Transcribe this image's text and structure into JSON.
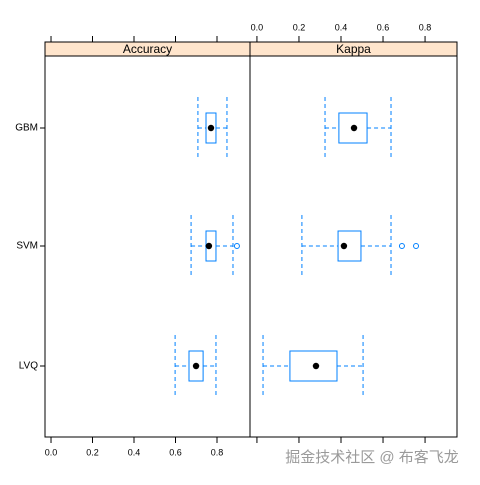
{
  "chart_data": [
    {
      "type": "box",
      "title": "Accuracy",
      "color": "#0080ff",
      "categories": [
        "GBM",
        "SVM",
        "LVQ"
      ],
      "boxes": [
        {
          "min": 0.708,
          "q1": 0.747,
          "median": 0.771,
          "q3": 0.795,
          "max": 0.848,
          "outliers": []
        },
        {
          "min": 0.675,
          "q1": 0.747,
          "median": 0.761,
          "q3": 0.795,
          "max": 0.877,
          "outliers": [
            0.896
          ]
        },
        {
          "min": 0.598,
          "q1": 0.665,
          "median": 0.699,
          "q3": 0.733,
          "max": 0.795,
          "outliers": []
        }
      ],
      "xlim": [
        -0.029,
        0.959
      ],
      "xticks": [
        {
          "value": 0,
          "label": "0.0"
        },
        {
          "value": 0.2,
          "label": "0.2"
        },
        {
          "value": 0.4,
          "label": "0.4"
        },
        {
          "value": 0.6,
          "label": "0.6"
        },
        {
          "value": 0.8,
          "label": "0.8"
        }
      ],
      "tick_labels_side": "bottom"
    },
    {
      "type": "box",
      "title": "Kappa",
      "color": "#0080ff",
      "categories": [
        "GBM",
        "SVM",
        "LVQ"
      ],
      "boxes": [
        {
          "min": 0.324,
          "q1": 0.39,
          "median": 0.462,
          "q3": 0.524,
          "max": 0.638,
          "outliers": []
        },
        {
          "min": 0.214,
          "q1": 0.386,
          "median": 0.414,
          "q3": 0.495,
          "max": 0.638,
          "outliers": [
            0.69,
            0.757
          ]
        },
        {
          "min": 0.029,
          "q1": 0.157,
          "median": 0.281,
          "q3": 0.381,
          "max": 0.505,
          "outliers": []
        }
      ],
      "xlim": [
        -0.033,
        0.952
      ],
      "xticks": [
        {
          "value": 0,
          "label": "0.0"
        },
        {
          "value": 0.2,
          "label": "0.2"
        },
        {
          "value": 0.4,
          "label": "0.4"
        },
        {
          "value": 0.6,
          "label": "0.6"
        },
        {
          "value": 0.8,
          "label": "0.8"
        }
      ],
      "tick_labels_side": "top"
    }
  ],
  "watermark": "掘金技术社区 @ 布客飞龙"
}
